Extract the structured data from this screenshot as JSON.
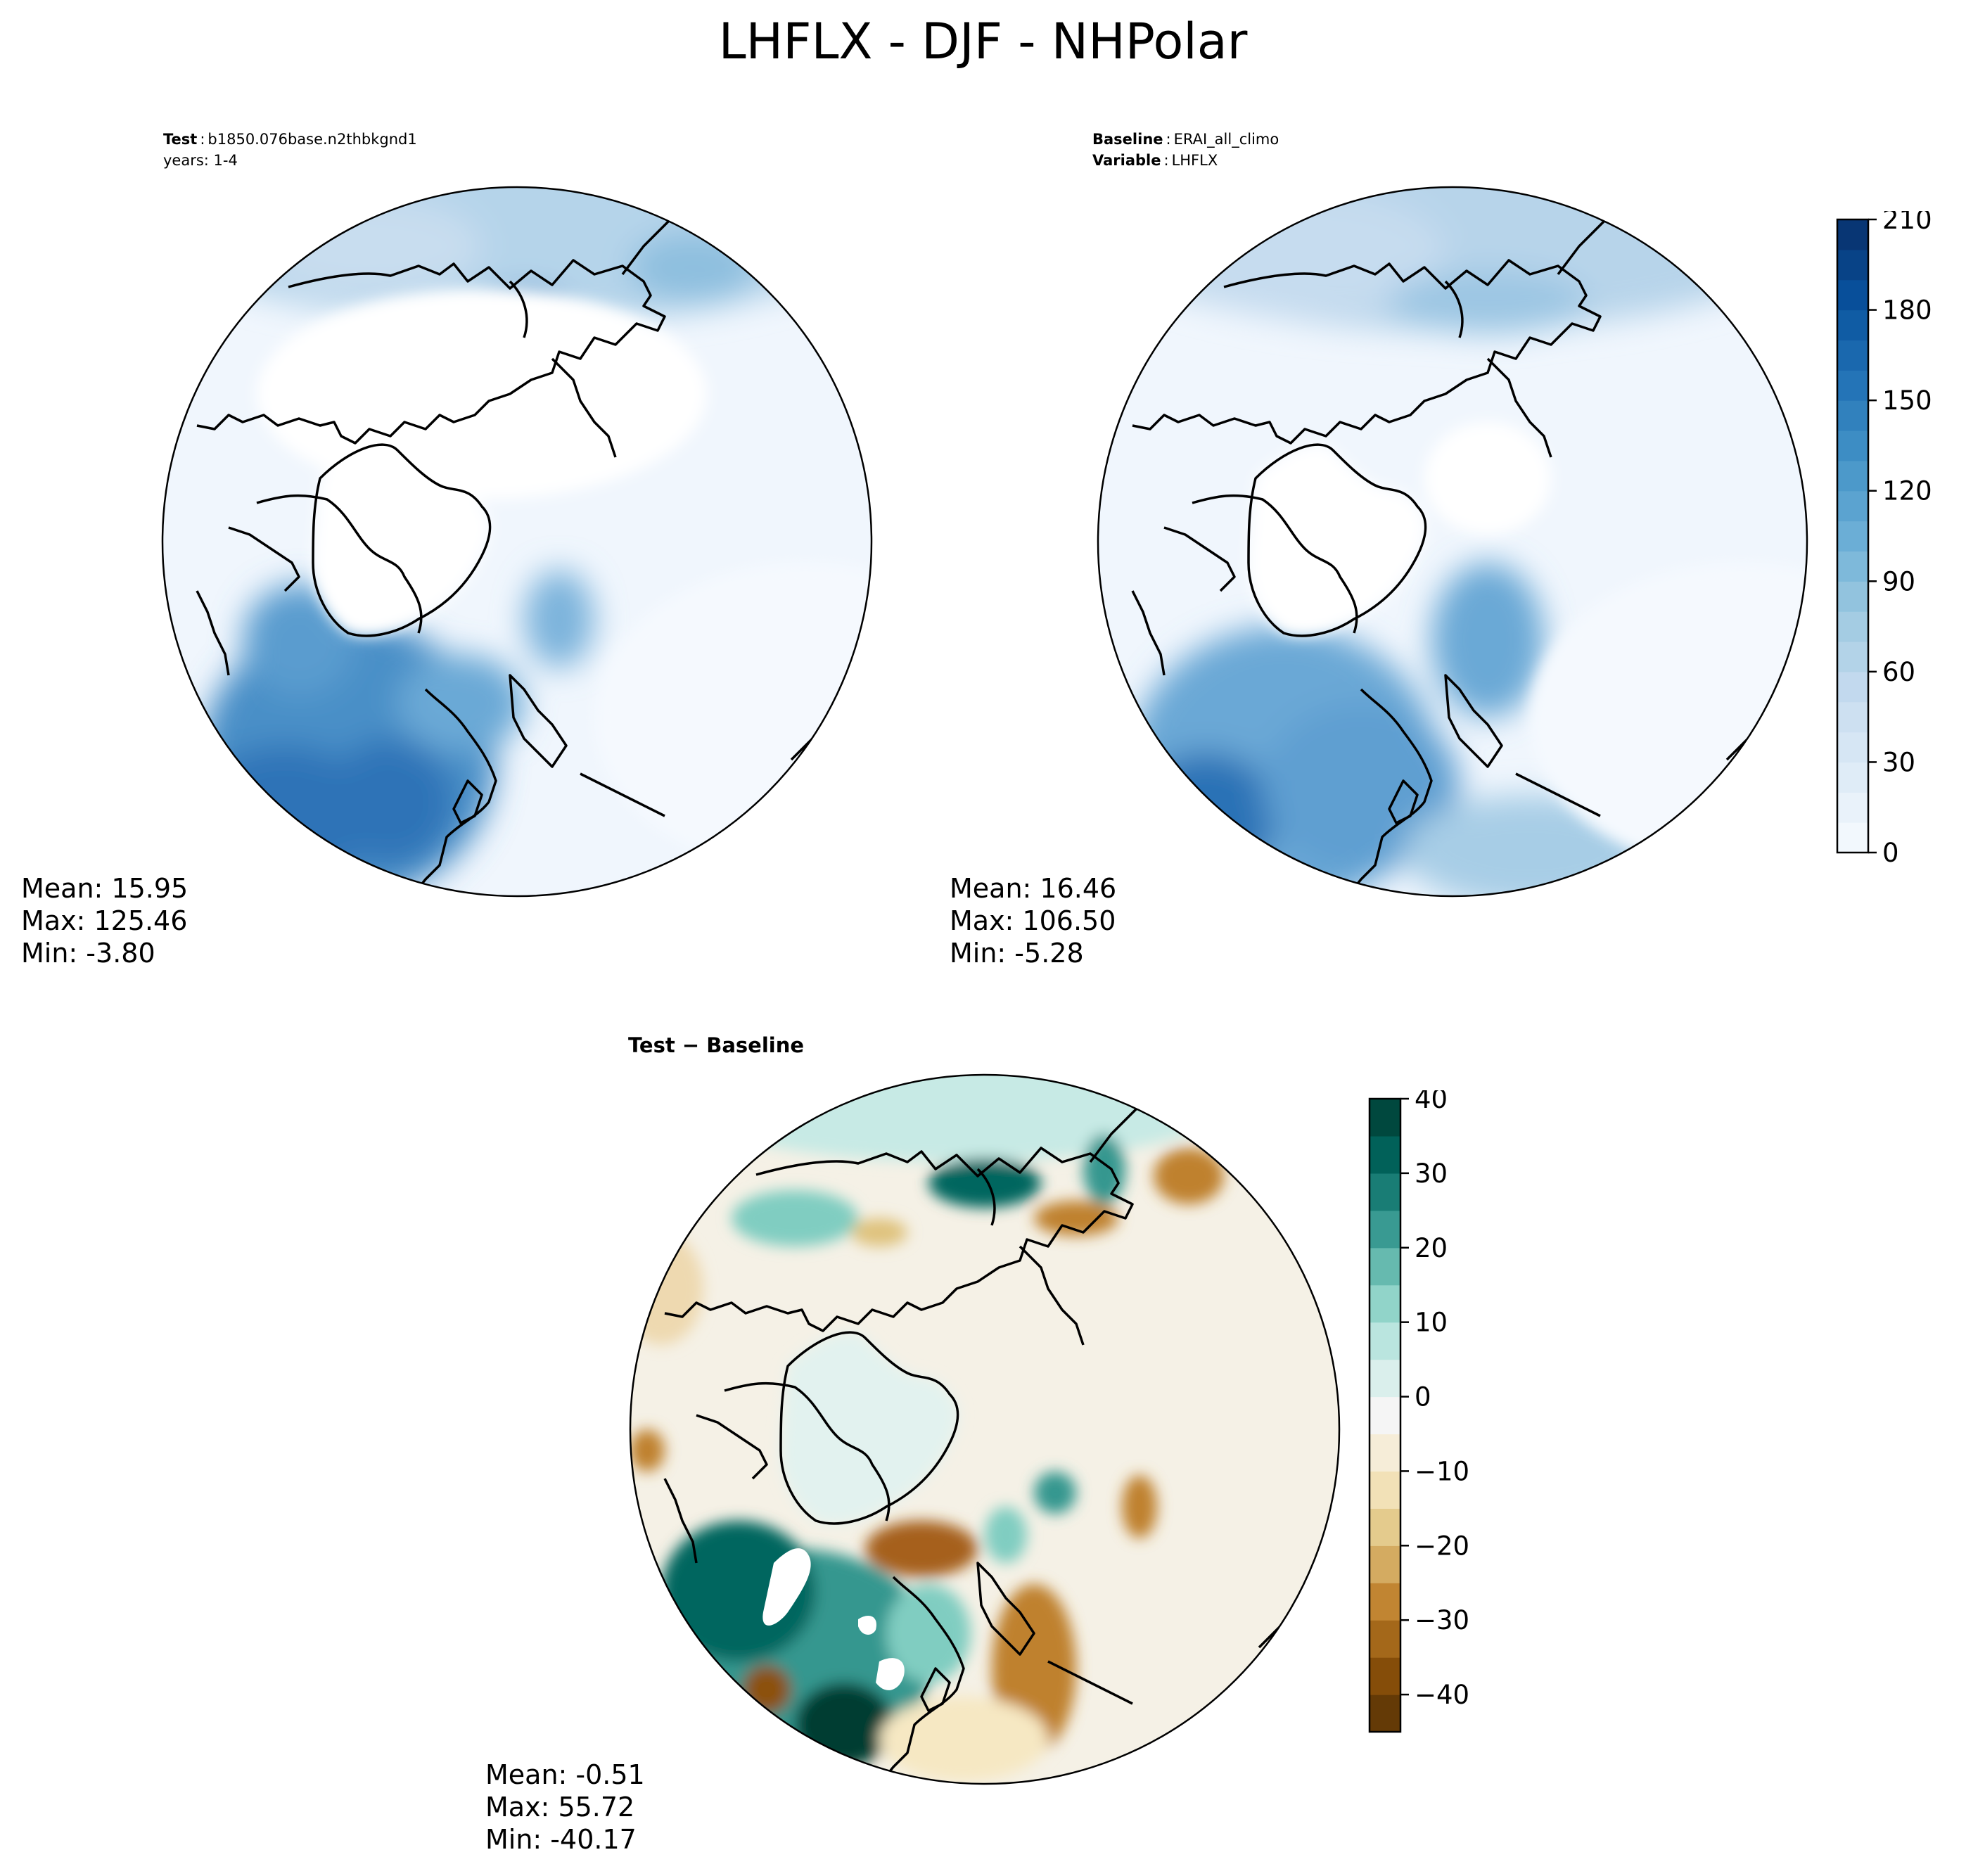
{
  "title": "LHFLX - DJF - NHPolar",
  "test_panel": {
    "header": {
      "label": "Test",
      "name": "b1850.076base.n2thbkgnd1",
      "years": "years: 1-4"
    },
    "stats": {
      "mean": "Mean: 15.95",
      "max": "Max: 125.46",
      "min": "Min: -3.80"
    }
  },
  "baseline_panel": {
    "header": {
      "label": "Baseline",
      "name": "ERAI_all_climo",
      "var_label": "Variable",
      "var_name": "LHFLX"
    },
    "stats": {
      "mean": "Mean: 16.46",
      "max": "Max: 106.50",
      "min": "Min: -5.28"
    }
  },
  "diff_panel": {
    "header": "Test − Baseline",
    "stats": {
      "mean": "Mean: -0.51",
      "max": "Max: 55.72",
      "min": "Min: -40.17"
    }
  },
  "chart_data": [
    {
      "type": "heatmap",
      "projection": "north-polar-stereographic",
      "colormap": "Blues",
      "colorbar": {
        "min": 0,
        "max": 210,
        "ticks": [
          "0",
          "30",
          "60",
          "90",
          "120",
          "150",
          "180",
          "210"
        ],
        "levels": 21
      },
      "colors": {
        "low": "#f2f7fd",
        "mid": "#7fb5dc",
        "high": "#08306b"
      }
    },
    {
      "type": "heatmap",
      "projection": "north-polar-stereographic",
      "colormap": "BrBG",
      "colorbar": {
        "min": -45,
        "max": 40,
        "ticks": [
          "−40",
          "−30",
          "−20",
          "−10",
          "0",
          "10",
          "20",
          "30",
          "40"
        ],
        "levels": 17
      },
      "colors": {
        "negative": "#8c510a",
        "neutral": "#f5f1e7",
        "positive": "#01665e"
      }
    }
  ]
}
